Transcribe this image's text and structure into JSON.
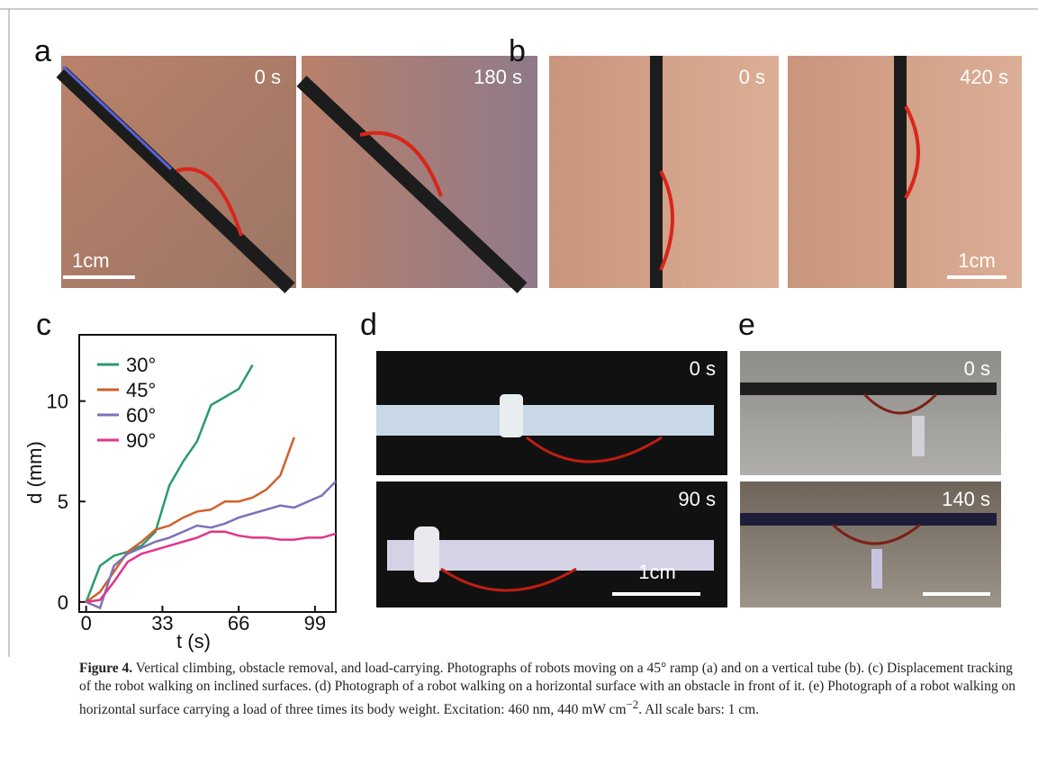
{
  "panels": {
    "a": {
      "label": "a",
      "times": [
        "0 s",
        "180 s"
      ],
      "scale_bar": "1cm"
    },
    "b": {
      "label": "b",
      "times": [
        "0 s",
        "420 s"
      ],
      "scale_bar": "1cm"
    },
    "c": {
      "label": "c"
    },
    "d": {
      "label": "d",
      "times": [
        "0 s",
        "90 s"
      ],
      "scale_bar": "1cm"
    },
    "e": {
      "label": "e",
      "times": [
        "0 s",
        "140 s"
      ]
    }
  },
  "chart_data": {
    "type": "line",
    "x_label": "t (s)",
    "y_label": "d (mm)",
    "x": [
      0,
      6,
      12,
      18,
      24,
      30,
      36,
      42,
      48,
      54,
      60,
      66,
      72,
      78,
      84,
      90,
      96,
      102,
      108
    ],
    "series": [
      {
        "name": "30°",
        "color": "#2a9a6e",
        "values": [
          0,
          1.8,
          2.3,
          2.5,
          2.8,
          3.5,
          5.8,
          7.0,
          8.0,
          9.8,
          10.2,
          10.6,
          11.8,
          null,
          null,
          null,
          null,
          null,
          null
        ]
      },
      {
        "name": "45°",
        "color": "#d0612a",
        "values": [
          0,
          0.5,
          1.5,
          2.5,
          3.0,
          3.6,
          3.8,
          4.2,
          4.5,
          4.6,
          5.0,
          5.0,
          5.2,
          5.6,
          6.3,
          8.2,
          null,
          null,
          null
        ]
      },
      {
        "name": "60°",
        "color": "#7b72b8",
        "values": [
          0,
          -0.3,
          1.8,
          2.4,
          2.7,
          3.0,
          3.2,
          3.5,
          3.8,
          3.7,
          3.9,
          4.2,
          4.4,
          4.6,
          4.8,
          4.7,
          5.0,
          5.3,
          6.0
        ]
      },
      {
        "name": "90°",
        "color": "#e3348c",
        "values": [
          0,
          0.1,
          1.0,
          2.0,
          2.4,
          2.6,
          2.8,
          3.0,
          3.2,
          3.5,
          3.5,
          3.3,
          3.2,
          3.2,
          3.1,
          3.1,
          3.2,
          3.2,
          3.4
        ]
      }
    ],
    "xlim": [
      -3,
      108
    ],
    "ylim": [
      -0.5,
      13.3
    ],
    "xticks": [
      0,
      33,
      66,
      99
    ],
    "yticks": [
      0,
      5,
      10
    ],
    "grid": false
  },
  "caption": {
    "label": "Figure 4.",
    "text": " Vertical climbing, obstacle removal, and load-carrying. Photographs of robots moving on a 45° ramp (a) and on a vertical tube (b). (c) Displacement tracking of the robot walking on inclined surfaces. (d) Photograph of a robot walking on a horizontal surface with an obstacle in front of it. (e) Photograph of a robot walking on horizontal surface carrying a load of three times its body weight. Excitation: 460 nm, 440 mW cm",
    "superscript": "−2",
    "text_end": ". All scale bars: 1 cm."
  }
}
